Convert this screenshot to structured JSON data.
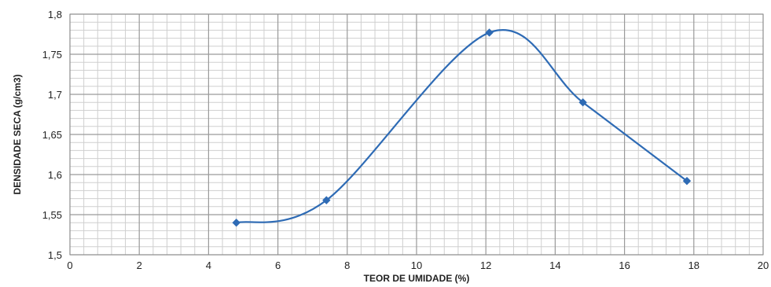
{
  "chart_data": {
    "type": "line",
    "xlabel": "TEOR DE UMIDADE (%)",
    "ylabel": "DENSIDADE SECA (g/cm3)",
    "xlim": [
      0,
      20
    ],
    "ylim": [
      1.5,
      1.8
    ],
    "x_ticks": [
      "0",
      "2",
      "4",
      "6",
      "8",
      "10",
      "12",
      "14",
      "16",
      "18",
      "20"
    ],
    "y_ticks": [
      "1,5",
      "1,55",
      "1,6",
      "1,65",
      "1,7",
      "1,75",
      "1,8"
    ],
    "grid": true,
    "smooth": true,
    "series": [
      {
        "color": "#2e6bb5",
        "marker": "diamond",
        "x": [
          4.8,
          7.4,
          12.1,
          14.8,
          17.8
        ],
        "y": [
          1.54,
          1.568,
          1.777,
          1.69,
          1.592
        ]
      }
    ]
  }
}
